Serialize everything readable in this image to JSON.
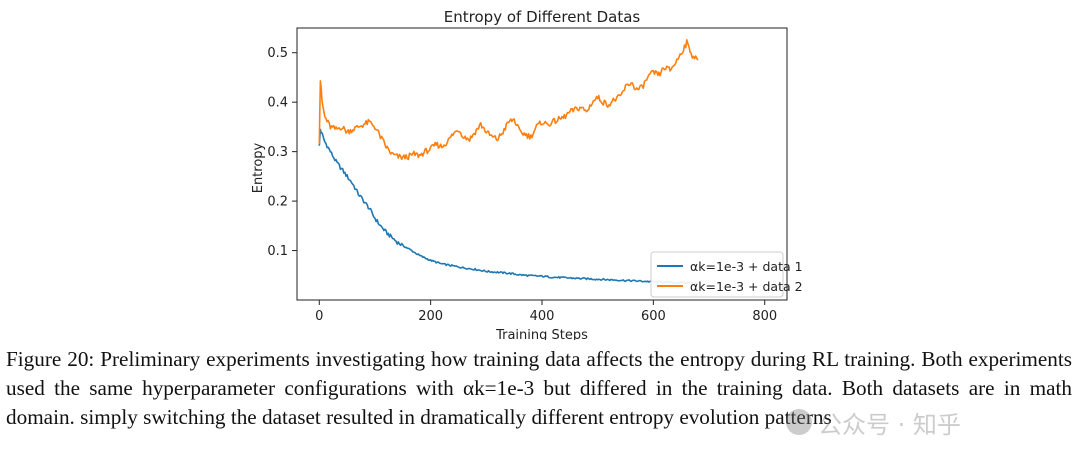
{
  "figure": {
    "caption": "Figure 20: Preliminary experiments investigating how training data affects the entropy during RL training. Both experiments used the same hyperparameter configurations with αk=1e-3 but differed in the training data. Both datasets are in math domain. simply switching the dataset resulted in dramatically different entropy evolution patterns"
  },
  "watermark": {
    "text": "公众号 · 知乎"
  },
  "chart_data": {
    "type": "line",
    "title": "Entropy of Different Datas",
    "xlabel": "Training Steps",
    "ylabel": "Entropy",
    "xlim": [
      -40,
      840
    ],
    "ylim": [
      0.0,
      0.55
    ],
    "xticks": [
      0,
      200,
      400,
      600,
      800
    ],
    "yticks": [
      0.1,
      0.2,
      0.3,
      0.4,
      0.5
    ],
    "grid": false,
    "legend_position": "lower-right",
    "series": [
      {
        "name": "αk=1e-3 + data 1",
        "color": "#1f77b4",
        "x": [
          0,
          2,
          5,
          10,
          20,
          30,
          40,
          50,
          60,
          70,
          80,
          90,
          100,
          110,
          120,
          130,
          140,
          150,
          160,
          170,
          180,
          190,
          200,
          220,
          240,
          260,
          280,
          300,
          320,
          340,
          360,
          380,
          400,
          420,
          440,
          460,
          480,
          500,
          520,
          540,
          560,
          580,
          600,
          620,
          640,
          660,
          680
        ],
        "y": [
          0.31,
          0.345,
          0.335,
          0.32,
          0.3,
          0.28,
          0.265,
          0.25,
          0.235,
          0.215,
          0.2,
          0.185,
          0.165,
          0.15,
          0.137,
          0.127,
          0.117,
          0.11,
          0.104,
          0.097,
          0.09,
          0.085,
          0.08,
          0.073,
          0.069,
          0.065,
          0.062,
          0.058,
          0.056,
          0.054,
          0.051,
          0.049,
          0.048,
          0.046,
          0.045,
          0.044,
          0.043,
          0.042,
          0.041,
          0.04,
          0.039,
          0.038,
          0.037,
          0.036,
          0.035,
          0.035,
          0.034
        ]
      },
      {
        "name": "αk=1e-3 + data 2",
        "color": "#ff7f0e",
        "x": [
          0,
          2,
          5,
          10,
          20,
          30,
          40,
          50,
          60,
          70,
          80,
          90,
          100,
          110,
          120,
          130,
          140,
          150,
          160,
          170,
          180,
          190,
          200,
          210,
          220,
          230,
          240,
          250,
          260,
          270,
          280,
          290,
          300,
          310,
          320,
          330,
          340,
          350,
          360,
          370,
          380,
          390,
          400,
          410,
          420,
          430,
          440,
          450,
          460,
          470,
          480,
          490,
          500,
          510,
          520,
          530,
          540,
          550,
          560,
          570,
          580,
          590,
          600,
          610,
          620,
          630,
          640,
          650,
          660,
          670,
          680
        ],
        "y": [
          0.32,
          0.445,
          0.4,
          0.37,
          0.35,
          0.345,
          0.35,
          0.34,
          0.345,
          0.35,
          0.355,
          0.36,
          0.35,
          0.33,
          0.31,
          0.295,
          0.29,
          0.288,
          0.29,
          0.295,
          0.292,
          0.3,
          0.305,
          0.315,
          0.31,
          0.32,
          0.335,
          0.345,
          0.33,
          0.325,
          0.34,
          0.355,
          0.34,
          0.33,
          0.325,
          0.34,
          0.36,
          0.365,
          0.34,
          0.335,
          0.33,
          0.35,
          0.36,
          0.355,
          0.36,
          0.365,
          0.37,
          0.38,
          0.385,
          0.39,
          0.38,
          0.4,
          0.41,
          0.4,
          0.395,
          0.405,
          0.41,
          0.43,
          0.44,
          0.425,
          0.43,
          0.45,
          0.46,
          0.455,
          0.47,
          0.465,
          0.48,
          0.5,
          0.52,
          0.495,
          0.485
        ]
      }
    ]
  }
}
